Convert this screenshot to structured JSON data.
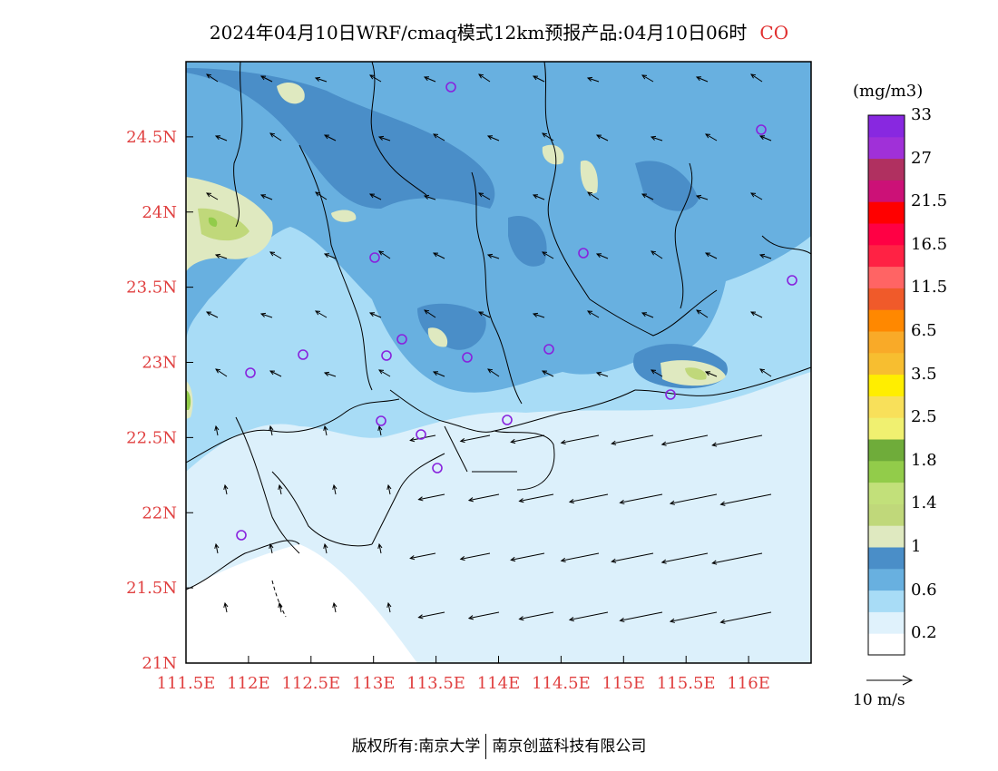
{
  "title": {
    "main": "2024年04月10日WRF/cmaq模式12km预报产品:04月10日06时",
    "species": "CO"
  },
  "colorbar": {
    "unit": "(mg/m3)",
    "colors": [
      "#ffffff",
      "#e0f2fc",
      "#a8dcf6",
      "#68b0e0",
      "#4a8ec8",
      "#dfe9c0",
      "#c0d87a",
      "#c2e07a",
      "#92cc4a",
      "#6fac3a",
      "#f0f070",
      "#f8e05a",
      "#ffee00",
      "#f7be30",
      "#f9aa28",
      "#ff8800",
      "#f05a2a",
      "#ff6464",
      "#ff2244",
      "#ff0044",
      "#ff0000",
      "#cc1177",
      "#b03060",
      "#a030d8",
      "#8828e0"
    ],
    "labels": [
      "0.2",
      "0.6",
      "1",
      "1.4",
      "1.8",
      "2.5",
      "3.5",
      "6.5",
      "11.5",
      "16.5",
      "21.5",
      "27",
      "33"
    ]
  },
  "axes": {
    "lon_ticks": [
      "111.5E",
      "112E",
      "112.5E",
      "113E",
      "113.5E",
      "114E",
      "114.5E",
      "115E",
      "115.5E",
      "116E"
    ],
    "lat_ticks": [
      "21N",
      "21.5N",
      "22N",
      "22.5N",
      "23N",
      "23.5N",
      "24N",
      "24.5N"
    ],
    "lon_range": [
      111.5,
      116.5
    ],
    "lat_range": [
      21,
      25
    ],
    "tick_color": "#e04040"
  },
  "reference_wind": "10 m/s",
  "footer": {
    "left": "版权所有:南京大学",
    "right": "南京创蓝科技有限公司"
  }
}
